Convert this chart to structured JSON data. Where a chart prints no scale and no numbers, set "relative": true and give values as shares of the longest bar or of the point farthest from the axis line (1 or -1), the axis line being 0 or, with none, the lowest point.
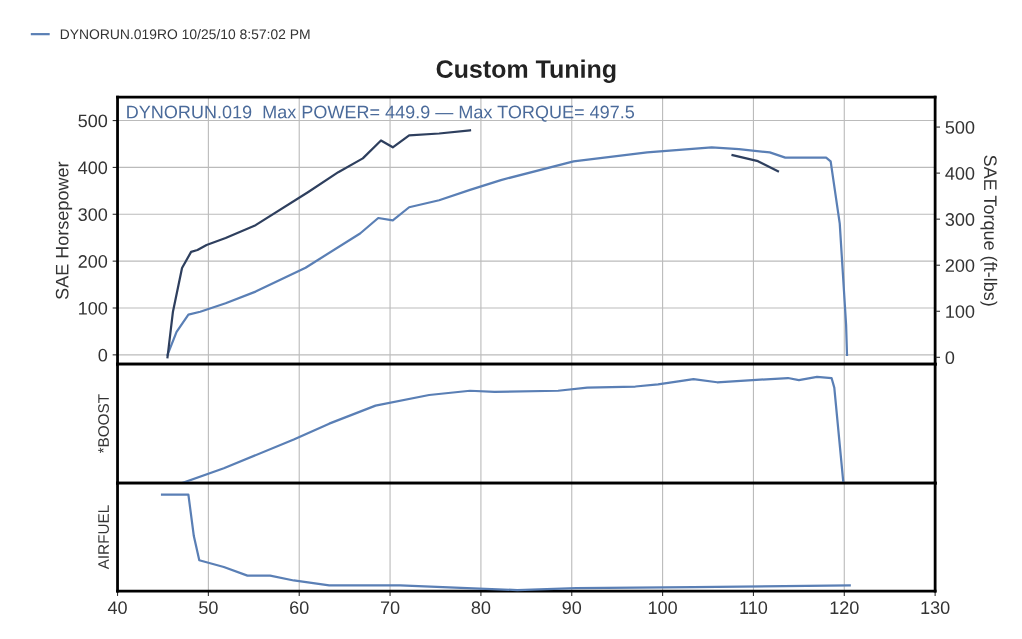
{
  "chart_data": [
    {
      "type": "line",
      "title": "Custom Tuning",
      "legend": "top left",
      "ylabel": "SAE Horsepower",
      "y2label": "SAE Torque (ft-lbs)",
      "annotations": [
        "DYNORUN.019  Max POWER= 449.9 — Max TORQUE= 497.5"
      ],
      "xlim": [
        40,
        130
      ],
      "xticks": [
        40,
        50,
        60,
        70,
        80,
        90,
        100,
        110,
        120,
        130
      ],
      "ylim": [
        -20,
        550
      ],
      "yticks": [
        0,
        100,
        200,
        300,
        400,
        500
      ],
      "y2lim": [
        -15,
        565
      ],
      "y2ticks": [
        0,
        100,
        200,
        300,
        400,
        500
      ],
      "grid": true,
      "tick_labels": "y",
      "series": [
        {
          "name": "DYNORUN.019RO 10/25/10 8:57:02 PM",
          "color": "#5a7fb5",
          "x": [
            45.5,
            46.5,
            47.8,
            49.1,
            51.9,
            55.2,
            60.7,
            66.7,
            68.7,
            70.3,
            72.1,
            75.4,
            78.8,
            82.2,
            90.2,
            98.3,
            105.4,
            108.4,
            111.8,
            113.5,
            115.8,
            118.0,
            118.5,
            119.5,
            120.2,
            120.3
          ],
          "values": [
            0,
            49,
            86,
            92,
            110,
            135,
            186,
            259,
            292,
            287,
            315,
            330,
            352,
            373,
            413,
            432,
            443,
            439,
            432,
            421,
            421,
            421,
            413,
            280,
            64,
            0
          ]
        },
        {
          "color": "#2e3f5e",
          "axis": "y2",
          "x": [
            45.5,
            46.1,
            47.1,
            48.1,
            48.8,
            49.8,
            51.9,
            55.2,
            61.0,
            64.3,
            67.0,
            69.0,
            70.3,
            72.1,
            75.4,
            78.8,
            93.0,
            107.7,
            110.5,
            112.7
          ],
          "values": [
            0,
            99,
            194,
            229,
            233,
            244,
            259,
            287,
            359,
            402,
            432,
            471,
            456,
            482,
            486,
            493,
            null,
            439,
            426,
            404
          ]
        }
      ]
    },
    {
      "type": "line",
      "ylabel": "*BOOST",
      "relative": true,
      "xlim": [
        40,
        130
      ],
      "xticks": [
        40,
        50,
        60,
        70,
        80,
        90,
        100,
        110,
        120,
        130
      ],
      "grid": "x",
      "tick_labels": false,
      "series": [
        {
          "color": "#5a7fb5",
          "x": [
            47.1,
            51.7,
            59.4,
            63.3,
            68.4,
            74.3,
            78.8,
            81.5,
            88.5,
            91.7,
            97.0,
            99.5,
            103.4,
            106.0,
            109.9,
            113.8,
            115.0,
            117.0,
            118.6,
            118.9,
            119.9
          ],
          "values": [
            0,
            0.14,
            0.41,
            0.56,
            0.73,
            0.83,
            0.87,
            0.86,
            0.87,
            0.9,
            0.91,
            0.93,
            0.98,
            0.95,
            0.97,
            0.99,
            0.97,
            1,
            0.99,
            0.9,
            0
          ]
        }
      ]
    },
    {
      "type": "line",
      "ylabel": "AIRFUEL",
      "relative": true,
      "xlim": [
        40,
        130
      ],
      "xticks": [
        40,
        50,
        60,
        70,
        80,
        90,
        100,
        110,
        120,
        130
      ],
      "grid": "x",
      "tick_labels": "x",
      "series": [
        {
          "color": "#5a7fb5",
          "x": [
            44.9,
            47.8,
            48.4,
            49.0,
            51.7,
            54.3,
            56.8,
            59.4,
            63.3,
            71.1,
            84.0,
            90.5,
            103.4,
            120.6
          ],
          "values": [
            1,
            1,
            0.57,
            0.32,
            0.25,
            0.16,
            0.16,
            0.11,
            0.06,
            0.06,
            0.01,
            0.03,
            0.04,
            0.06
          ]
        }
      ]
    }
  ]
}
